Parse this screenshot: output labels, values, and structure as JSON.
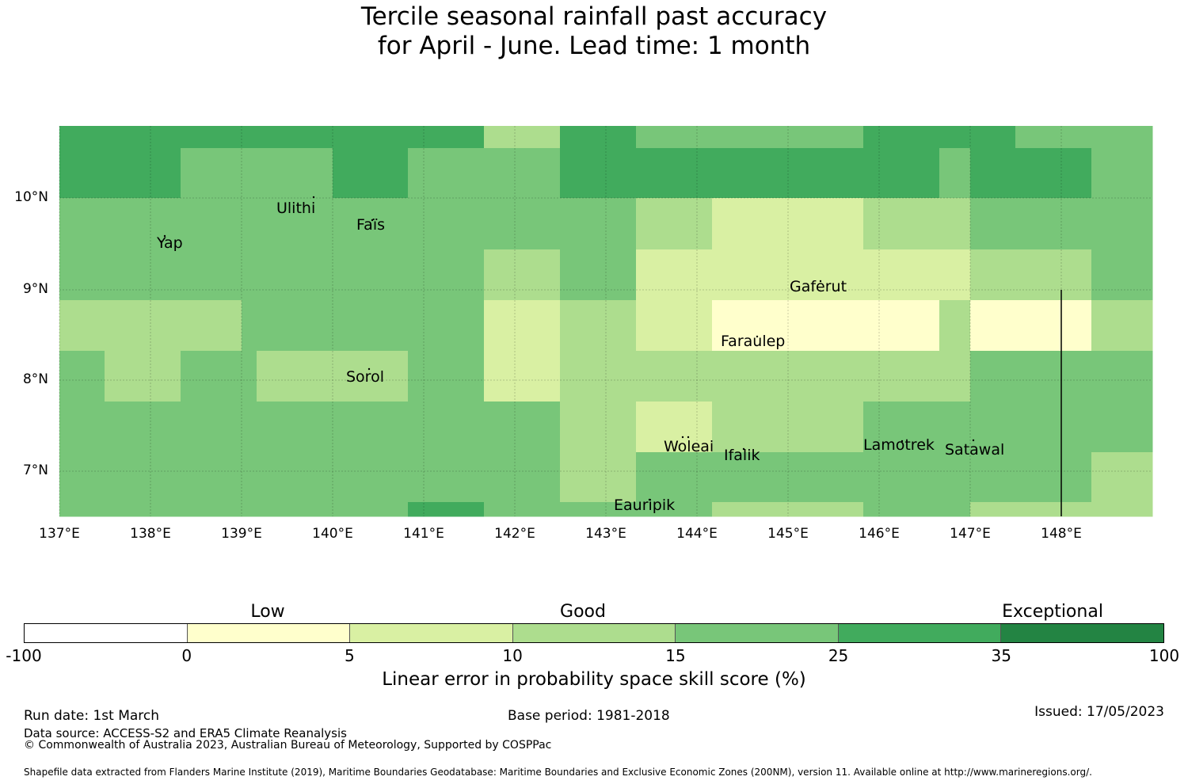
{
  "title_line1": "Tercile seasonal rainfall past accuracy",
  "title_line2": "for April - June. Lead time: 1 month",
  "map": {
    "colors": {
      "0": "#ffffff",
      "1": "#ffffcc",
      "2": "#d9f0a3",
      "3": "#addd8e",
      "4": "#78c679",
      "5": "#41ab5d",
      "6": "#238443"
    },
    "lon_labels": [
      "137°E",
      "138°E",
      "139°E",
      "140°E",
      "141°E",
      "142°E",
      "143°E",
      "144°E",
      "145°E",
      "146°E",
      "147°E",
      "148°E"
    ],
    "lat_labels": [
      "10°N",
      "9°N",
      "8°N",
      "7°N"
    ],
    "places": [
      {
        "name": "Ulithi"
      },
      {
        "name": "Faïs"
      },
      {
        "name": "Yap"
      },
      {
        "name": "Gaferut"
      },
      {
        "name": "Faraulep"
      },
      {
        "name": "Sorol"
      },
      {
        "name": "Woleai"
      },
      {
        "name": "Ifalik"
      },
      {
        "name": "Lamotrek"
      },
      {
        "name": "Satawal"
      },
      {
        "name": "Eauripik"
      }
    ]
  },
  "colorbar": {
    "categories": [
      "Low",
      "Good",
      "Exceptional"
    ],
    "ticks": [
      "-100",
      "0",
      "5",
      "10",
      "15",
      "25",
      "35",
      "100"
    ],
    "label": "Linear error in probability space skill score (%)"
  },
  "footer": {
    "run_date": "Run date: 1st March",
    "base_period": "Base period: 1981-2018",
    "issued": "Issued: 17/05/2023",
    "data_source": "Data source: ACCESS-S2 and ERA5 Climate Reanalysis",
    "copyright": "© Commonwealth of Australia 2023, Australian Bureau of Meteorology, Supported by COSPPac",
    "shapefile": "Shapefile data extracted from Flanders Marine Institute (2019), Maritime Boundaries Geodatabase: Maritime Boundaries and Exclusive Economic Zones (200NM), version 11. Available online at http://www.marineregions.org/."
  }
}
